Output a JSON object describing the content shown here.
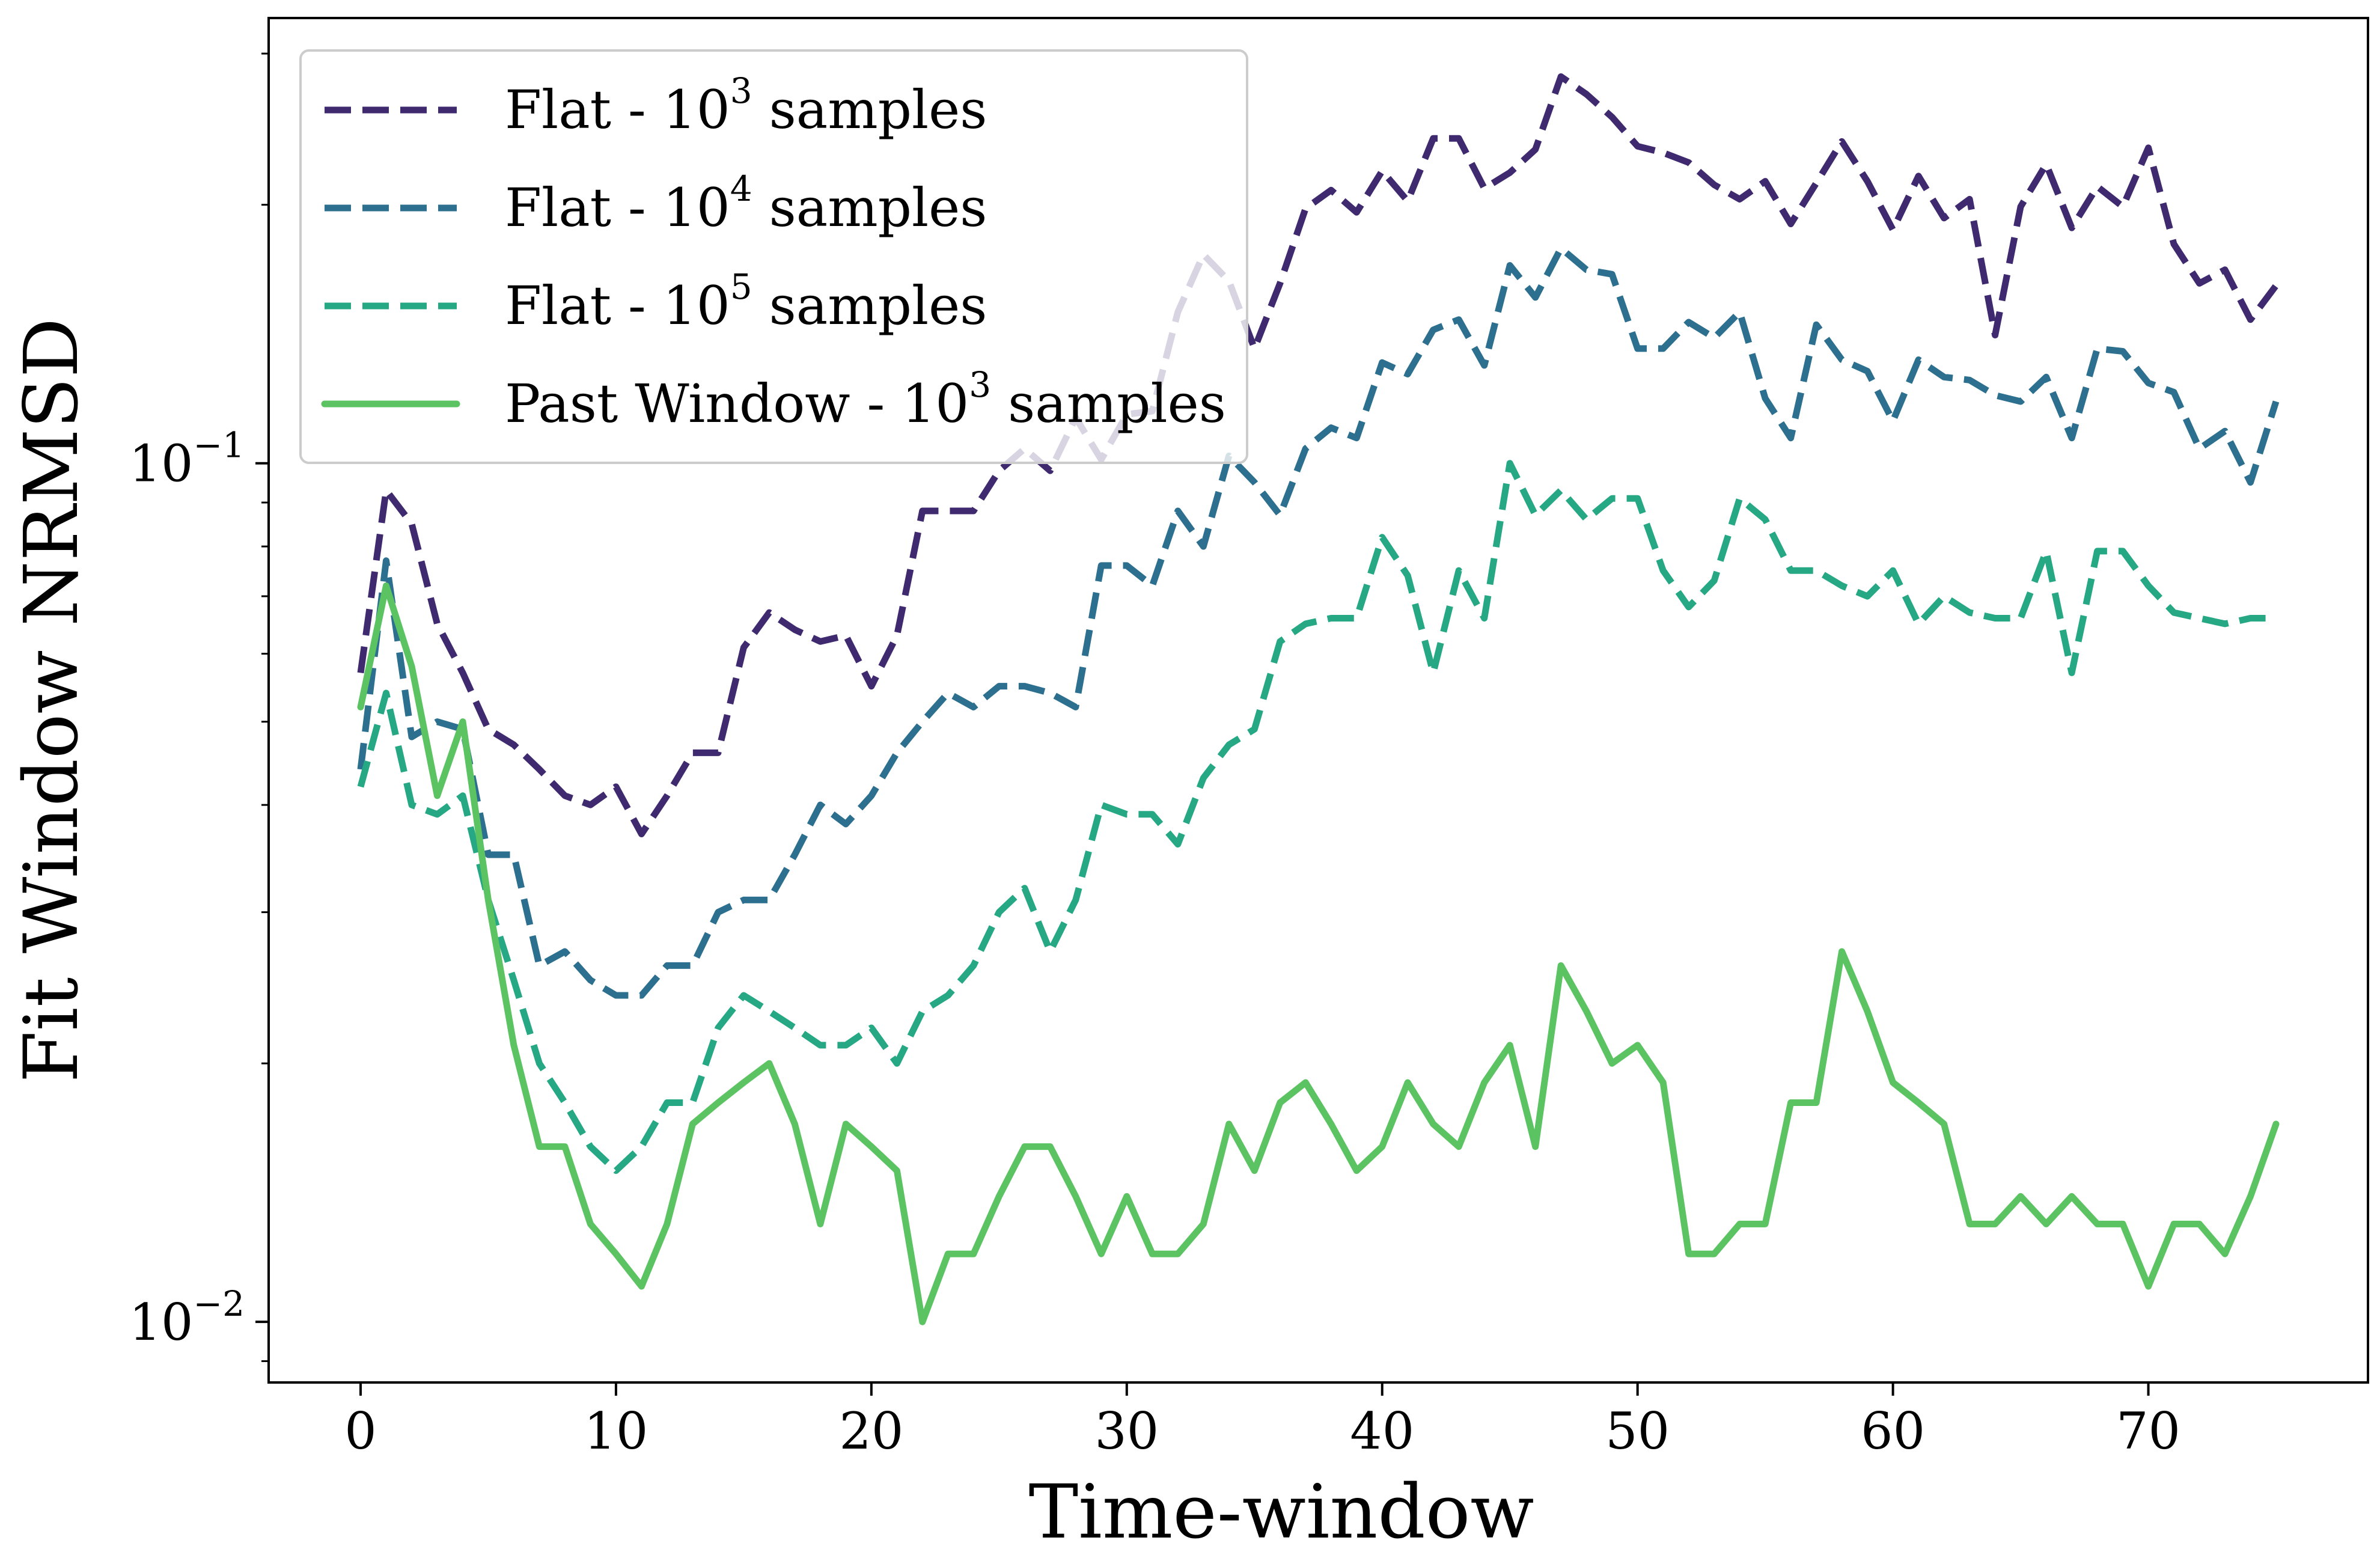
{
  "chart_data": {
    "type": "line",
    "title": "",
    "xlabel": "Time-window",
    "ylabel": "Fit Window NRMSD",
    "yscale": "log",
    "xlim": [
      -3.6,
      78.6
    ],
    "ylim": [
      0.0085,
      0.33
    ],
    "xticks": [
      0,
      10,
      20,
      30,
      40,
      50,
      60,
      70
    ],
    "xtick_labels": [
      "0",
      "10",
      "20",
      "30",
      "40",
      "50",
      "60",
      "70"
    ],
    "yticks": [
      {
        "value": 0.1,
        "base": "10",
        "exponent": "−1"
      },
      {
        "value": 0.01,
        "base": "10",
        "exponent": "−2"
      }
    ],
    "grid": false,
    "legend_position": "upper-left",
    "x": [
      0,
      1,
      2,
      3,
      4,
      5,
      6,
      7,
      8,
      9,
      10,
      11,
      12,
      13,
      14,
      15,
      16,
      17,
      18,
      19,
      20,
      21,
      22,
      23,
      24,
      25,
      26,
      27,
      28,
      29,
      30,
      31,
      32,
      33,
      34,
      35,
      36,
      37,
      38,
      39,
      40,
      41,
      42,
      43,
      44,
      45,
      46,
      47,
      48,
      49,
      50,
      51,
      52,
      53,
      54,
      55,
      56,
      57,
      58,
      59,
      60,
      61,
      62,
      63,
      64,
      65,
      66,
      67,
      68,
      69,
      70,
      71,
      72,
      73,
      74,
      75
    ],
    "series": [
      {
        "name_prefix": "Flat - 10",
        "name_exponent": "3",
        "name_suffix": " samples",
        "color": "#3f2a70",
        "dash": "dashed",
        "values": [
          0.057,
          0.093,
          0.085,
          0.065,
          0.057,
          0.049,
          0.047,
          0.044,
          0.041,
          0.04,
          0.042,
          0.037,
          0.041,
          0.046,
          0.046,
          0.061,
          0.067,
          0.064,
          0.062,
          0.063,
          0.055,
          0.063,
          0.088,
          0.088,
          0.088,
          0.098,
          0.104,
          0.098,
          0.113,
          0.101,
          0.114,
          0.115,
          0.15,
          0.175,
          0.163,
          0.136,
          0.162,
          0.198,
          0.208,
          0.196,
          0.219,
          0.202,
          0.239,
          0.239,
          0.209,
          0.218,
          0.232,
          0.282,
          0.269,
          0.253,
          0.234,
          0.23,
          0.224,
          0.211,
          0.203,
          0.213,
          0.19,
          0.212,
          0.237,
          0.213,
          0.187,
          0.216,
          0.193,
          0.203,
          0.141,
          0.199,
          0.223,
          0.188,
          0.21,
          0.199,
          0.233,
          0.18,
          0.162,
          0.168,
          0.147,
          0.161
        ]
      },
      {
        "name_prefix": "Flat - 10",
        "name_exponent": "4",
        "name_suffix": " samples",
        "color": "#2c6f8e",
        "dash": "dashed",
        "values": [
          0.044,
          0.077,
          0.048,
          0.05,
          0.049,
          0.035,
          0.035,
          0.026,
          0.027,
          0.025,
          0.024,
          0.024,
          0.026,
          0.026,
          0.03,
          0.031,
          0.031,
          0.035,
          0.04,
          0.038,
          0.041,
          0.046,
          0.05,
          0.054,
          0.052,
          0.055,
          0.055,
          0.054,
          0.052,
          0.076,
          0.076,
          0.072,
          0.088,
          0.08,
          0.102,
          0.095,
          0.087,
          0.104,
          0.11,
          0.107,
          0.131,
          0.127,
          0.143,
          0.147,
          0.13,
          0.17,
          0.156,
          0.178,
          0.168,
          0.166,
          0.136,
          0.136,
          0.146,
          0.14,
          0.15,
          0.119,
          0.107,
          0.145,
          0.132,
          0.128,
          0.112,
          0.132,
          0.126,
          0.125,
          0.12,
          0.118,
          0.126,
          0.107,
          0.136,
          0.135,
          0.124,
          0.121,
          0.104,
          0.109,
          0.095,
          0.118
        ]
      },
      {
        "name_prefix": "Flat - 10",
        "name_exponent": "5",
        "name_suffix": " samples",
        "color": "#26a884",
        "dash": "dashed",
        "values": [
          0.042,
          0.054,
          0.04,
          0.039,
          0.041,
          0.031,
          0.025,
          0.02,
          0.018,
          0.016,
          0.015,
          0.016,
          0.018,
          0.018,
          0.022,
          0.024,
          0.023,
          0.022,
          0.021,
          0.021,
          0.022,
          0.02,
          0.023,
          0.024,
          0.026,
          0.03,
          0.032,
          0.027,
          0.031,
          0.04,
          0.039,
          0.039,
          0.036,
          0.043,
          0.047,
          0.049,
          0.062,
          0.065,
          0.066,
          0.066,
          0.082,
          0.074,
          0.057,
          0.075,
          0.066,
          0.1,
          0.087,
          0.093,
          0.086,
          0.091,
          0.091,
          0.075,
          0.068,
          0.073,
          0.091,
          0.086,
          0.075,
          0.075,
          0.072,
          0.07,
          0.075,
          0.065,
          0.07,
          0.067,
          0.066,
          0.066,
          0.079,
          0.057,
          0.079,
          0.079,
          0.072,
          0.067,
          0.066,
          0.065,
          0.066,
          0.066
        ]
      },
      {
        "name_prefix": "Past Window - 10",
        "name_exponent": "3",
        "name_suffix": " samples",
        "color": "#5bc362",
        "dash": "solid",
        "values": [
          0.052,
          0.072,
          0.058,
          0.041,
          0.05,
          0.031,
          0.021,
          0.016,
          0.016,
          0.013,
          0.012,
          0.011,
          0.013,
          0.017,
          0.018,
          0.019,
          0.02,
          0.017,
          0.013,
          0.017,
          0.016,
          0.015,
          0.01,
          0.012,
          0.012,
          0.014,
          0.016,
          0.016,
          0.014,
          0.012,
          0.014,
          0.012,
          0.012,
          0.013,
          0.017,
          0.015,
          0.018,
          0.019,
          0.017,
          0.015,
          0.016,
          0.019,
          0.017,
          0.016,
          0.019,
          0.021,
          0.016,
          0.026,
          0.023,
          0.02,
          0.021,
          0.019,
          0.012,
          0.012,
          0.013,
          0.013,
          0.018,
          0.018,
          0.027,
          0.023,
          0.019,
          0.018,
          0.017,
          0.013,
          0.013,
          0.014,
          0.013,
          0.014,
          0.013,
          0.013,
          0.011,
          0.013,
          0.013,
          0.012,
          0.014,
          0.017
        ]
      }
    ]
  }
}
